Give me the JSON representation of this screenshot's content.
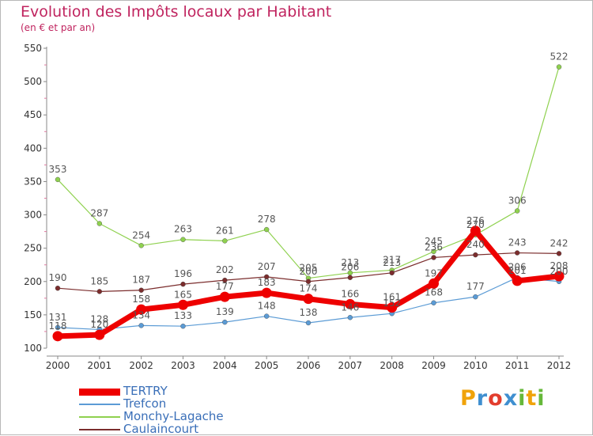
{
  "chart_data": {
    "type": "line",
    "title": "Evolution des Impôts locaux par Habitant",
    "subtitle": "(en € et par an)",
    "xlabel": "",
    "ylabel": "",
    "x": [
      "2000",
      "2001",
      "2002",
      "2003",
      "2004",
      "2005",
      "2006",
      "2007",
      "2008",
      "2009",
      "2010",
      "2011",
      "2012"
    ],
    "ylim": [
      100,
      550
    ],
    "yticks": [
      100,
      150,
      200,
      250,
      300,
      350,
      400,
      450,
      500,
      550
    ],
    "grid": false,
    "legend": "bottom-left",
    "series": [
      {
        "name": "TERTRY",
        "color": "#ee0000",
        "values": [
          118,
          120,
          158,
          165,
          177,
          183,
          174,
          166,
          161,
          197,
          276,
          201,
          208
        ]
      },
      {
        "name": "Trefcon",
        "color": "#5b9bd5",
        "values": [
          131,
          128,
          134,
          133,
          139,
          148,
          138,
          146,
          152,
          168,
          177,
          206,
          200
        ]
      },
      {
        "name": "Monchy-Lagache",
        "color": "#8fd14f",
        "values": [
          353,
          287,
          254,
          263,
          261,
          278,
          205,
          213,
          217,
          245,
          270,
          306,
          522
        ]
      },
      {
        "name": "Caulaincourt",
        "color": "#7b2d2d",
        "values": [
          190,
          185,
          187,
          196,
          202,
          207,
          200,
          206,
          213,
          236,
          240,
          243,
          242
        ]
      }
    ]
  },
  "logo": {
    "text": [
      "P",
      "r",
      "o",
      "x",
      "i",
      "t",
      "i"
    ],
    "colors": [
      "#f0a30a",
      "#3f8fd0",
      "#e23d2e",
      "#3f8fd0",
      "#66b83a",
      "#f0a30a",
      "#66b83a"
    ]
  }
}
